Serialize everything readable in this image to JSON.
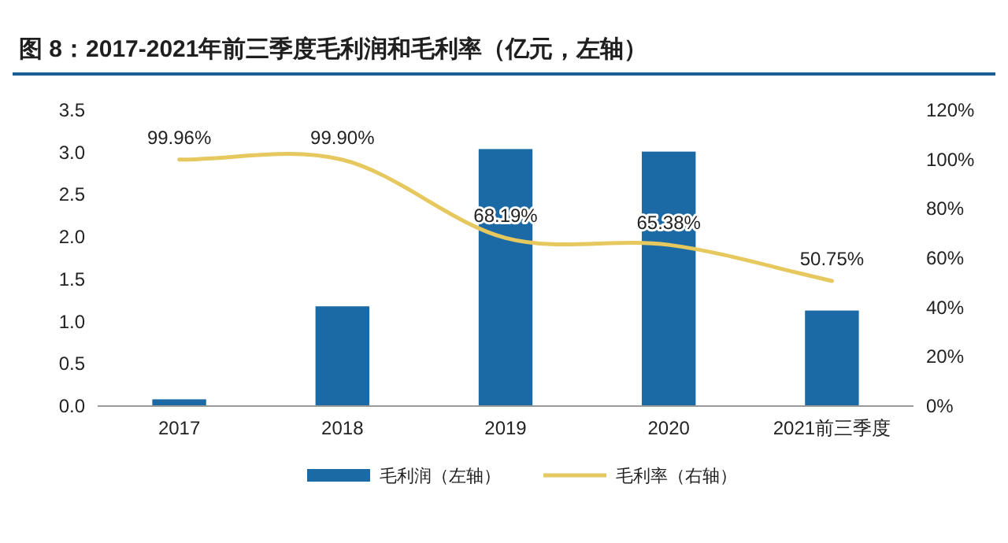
{
  "chart_data": {
    "type": "bar",
    "title": "图 8：2017-2021年前三季度毛利润和毛利率（亿元，左轴）",
    "categories": [
      "2017",
      "2018",
      "2019",
      "2020",
      "2021前三季度"
    ],
    "series": [
      {
        "name": "毛利润（左轴）",
        "color": "#1b6aa6",
        "values": [
          0.08,
          1.18,
          3.04,
          3.01,
          1.13
        ]
      },
      {
        "name": "毛利率（右轴）",
        "type": "line",
        "axis": "y2",
        "color": "#e6c85e",
        "values": [
          99.96,
          99.9,
          68.19,
          65.38,
          50.75
        ],
        "value_labels": [
          "99.96%",
          "99.90%",
          "68.19%",
          "65.38%",
          "50.75%"
        ]
      }
    ],
    "ylim": [
      0,
      3.5
    ],
    "yticks": [
      {
        "value": 0,
        "label": "0.0"
      },
      {
        "value": 0.5,
        "label": "0.5"
      },
      {
        "value": 1,
        "label": "1.0"
      },
      {
        "value": 1.5,
        "label": "1.5"
      },
      {
        "value": 2,
        "label": "2.0"
      },
      {
        "value": 2.5,
        "label": "2.5"
      },
      {
        "value": 3,
        "label": "3.0"
      },
      {
        "value": 3.5,
        "label": "3.5"
      }
    ],
    "y2lim": [
      0,
      120
    ],
    "y2ticks": [
      {
        "value": 0,
        "label": "0%"
      },
      {
        "value": 20,
        "label": "20%"
      },
      {
        "value": 40,
        "label": "40%"
      },
      {
        "value": 60,
        "label": "60%"
      },
      {
        "value": 80,
        "label": "80%"
      },
      {
        "value": 100,
        "label": "100%"
      },
      {
        "value": 120,
        "label": "120%"
      }
    ],
    "legend": "bottom",
    "grid": false
  }
}
